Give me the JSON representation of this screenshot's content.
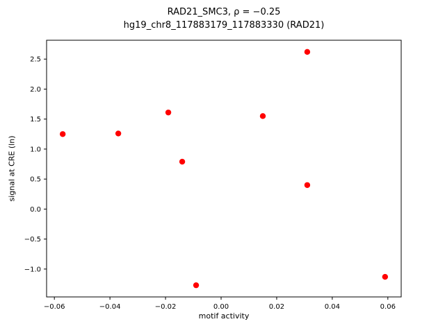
{
  "chart_data": {
    "type": "scatter",
    "title_line1": "RAD21_SMC3, ρ = −0.25",
    "title_line2": "hg19_chr8_117883179_117883330 (RAD21)",
    "xlabel": "motif activity",
    "ylabel": "signal at CRE (ln)",
    "marker_color": "#ff0000",
    "axis_color": "#000000",
    "xlim": [
      -0.0628,
      0.0648
    ],
    "ylim": [
      -1.4645,
      2.8145
    ],
    "xticks": [
      -0.06,
      -0.04,
      -0.02,
      0.0,
      0.02,
      0.04,
      0.06
    ],
    "yticks": [
      -1.0,
      -0.5,
      0.0,
      0.5,
      1.0,
      1.5,
      2.0,
      2.5
    ],
    "grid": false,
    "legend": "none",
    "points": [
      {
        "x": -0.057,
        "y": 1.25
      },
      {
        "x": -0.037,
        "y": 1.26
      },
      {
        "x": -0.019,
        "y": 1.61
      },
      {
        "x": -0.014,
        "y": 0.79
      },
      {
        "x": -0.009,
        "y": -1.27
      },
      {
        "x": 0.015,
        "y": 1.55
      },
      {
        "x": 0.031,
        "y": 2.62
      },
      {
        "x": 0.031,
        "y": 0.4
      },
      {
        "x": 0.059,
        "y": -1.13
      }
    ]
  }
}
